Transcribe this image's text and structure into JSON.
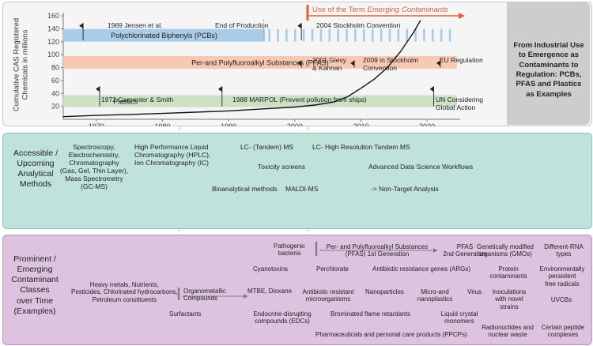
{
  "chart": {
    "ylabel": "Cumulative CAS Registered\nChemicals in millions",
    "yticks": [
      20,
      40,
      60,
      80,
      100,
      120,
      140,
      160
    ],
    "xticks": [
      1970,
      1980,
      1990,
      2000,
      2010,
      2020
    ],
    "emerging_label_prefix": "Use of the Term ",
    "emerging_label_italic": "Emerging Contaminants",
    "side_text": "From Industrial Use to Emergence as Contaminants to Regulation: PCBs, PFAS and Plastics as Examples",
    "bands": [
      {
        "label": "Polychlorinated Biphenyls (PCBs)",
        "color": "#a9cde9"
      },
      {
        "label": "Per-and Polyfluoroalkyl Substances (PFAS)",
        "color": "#f9c8b3"
      },
      {
        "label": "Plastics",
        "color": "#cde0c3"
      }
    ],
    "events": [
      {
        "label": "1969 Jensen et al."
      },
      {
        "label": "End of Production"
      },
      {
        "label": "2004 Stockholm Convention"
      },
      {
        "label": "2001 Giesy\n& Kannan"
      },
      {
        "label": "2009 in Stockholm\nConvention"
      },
      {
        "label": "EU Regulation"
      },
      {
        "label": "1972 Carpenter & Smith"
      },
      {
        "label": "1988 MARPOL (Prevent pollution from ships)"
      },
      {
        "label": "UN Considering\nGlobal Action"
      }
    ],
    "chart_data": {
      "type": "line",
      "x": [
        1965,
        1970,
        1975,
        1980,
        1985,
        1990,
        1995,
        2000,
        2003,
        2006,
        2008,
        2010,
        2012,
        2014,
        2016,
        2018,
        2019
      ],
      "values": [
        4,
        6,
        7.5,
        9,
        11,
        13,
        16,
        19,
        22,
        27,
        35,
        48,
        62,
        80,
        105,
        135,
        153
      ],
      "xlim": [
        1965,
        2025
      ],
      "ylim": [
        0,
        165
      ],
      "ylabel": "Cumulative CAS Registered Chemicals in millions"
    }
  },
  "methods": {
    "title": "Accessible /\nUpcoming\nAnalytical\nMethods",
    "items": [
      "Spectroscopy,\nElectrochemistry,\nChromatography\n(Gas, Gel, Thin Layer),\nMass Spectrometry\n(GC-MS)",
      "High Performance Liquid\nChromatography (HPLC),\nIon Chromatography (IC)",
      "LC- (Tandem) MS",
      "LC- High Resolution Tandem MS",
      "Toxicity screens",
      "Advanced Data Science Workflows",
      "Bioanalytical methods",
      "MALDI-MS",
      "-> Non-Target Analysis"
    ]
  },
  "contaminants": {
    "title": "Prominent /\nEmerging\nContaminant\nClasses\nover Time\n(Examples)",
    "items": [
      "Heavy metals, Nutrients,\nPesticides, Chlorinated hydrocarbons,\nPetroleum constituents",
      "Organometallic\nCompounds",
      "MTBE, Dioxane",
      "Surfactants",
      "Pathogenic\nbacteria",
      "Cyanotoxins",
      "Perchlorate",
      "Antibiotic resistant\nmicroorganisms",
      "Endocrine-disrupting\ncompounds (EDCs)",
      "Per- and Polyfluoroalkyl Substances\n(PFAS) 1st Generation",
      "PFAS\n2nd Generation",
      "Antibiotic resistance genes (ARGs)",
      "Nanoparticles",
      "Micro-and\nnanoplastics",
      "Brominated flame retardants",
      "Liquid crystal\nmonomers",
      "Pharmaceuticals and personal care products (PPCPs)",
      "Genetically modified\norganisms (GMOs)",
      "Protein\ncontaminants",
      "Virus",
      "Inoculations\nwith novel\nstrains",
      "Radionuclides and\nnuclear waste",
      "Different-RNA\ntypes",
      "Environmentally\npersistent\nfree radicals",
      "UVCBs",
      "Certain peptide\ncomplexes"
    ]
  },
  "colors": {
    "top_panel": "#f4f4f4",
    "side_panel": "#cfcfcf",
    "methods_panel": "#bfe3db",
    "contaminants_panel": "#ddc3df",
    "accent": "#e0603a"
  }
}
